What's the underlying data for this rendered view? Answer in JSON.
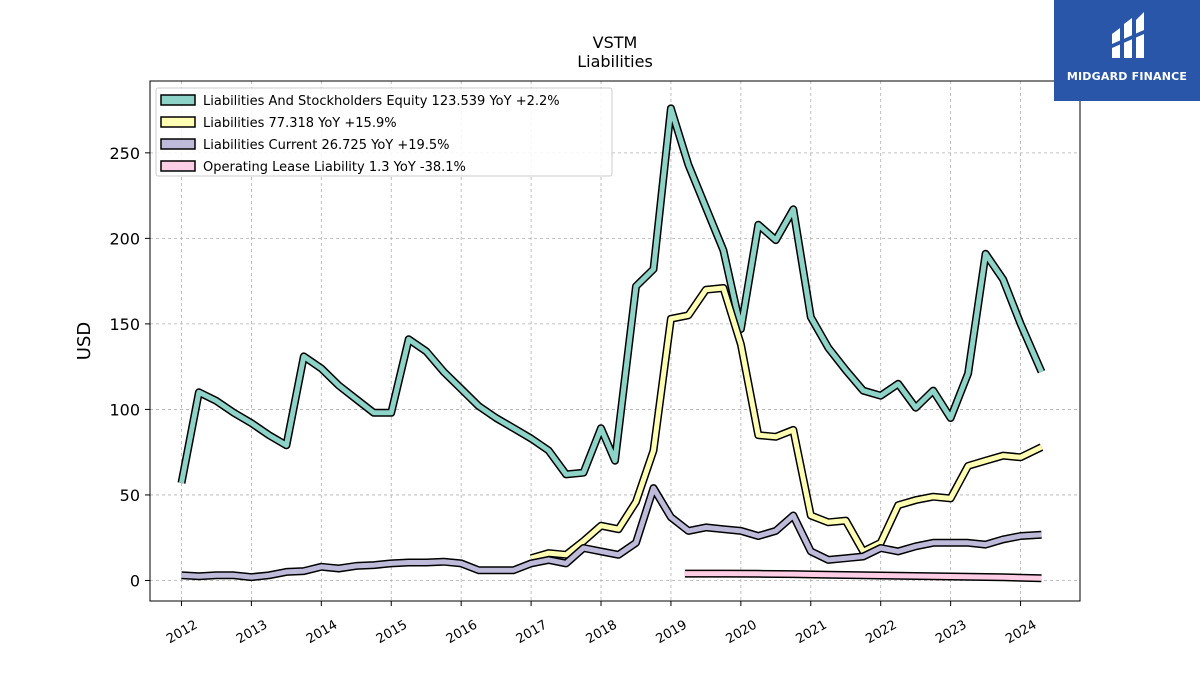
{
  "brand": {
    "name": "MIDGARD FINANCE",
    "bg": "#2a56a9"
  },
  "chart_data": {
    "type": "line",
    "title": "VSTM",
    "subtitle": "Liabilities",
    "ylabel": "USD",
    "xlabel": "",
    "xlim": [
      2011.55,
      2024.85
    ],
    "ylim": [
      -12,
      292
    ],
    "grid": true,
    "legend_position": "top-left",
    "yticks": [
      0,
      50,
      100,
      150,
      200,
      250
    ],
    "xticks": [
      "2012",
      "2013",
      "2014",
      "2015",
      "2016",
      "2017",
      "2018",
      "2019",
      "2020",
      "2021",
      "2022",
      "2023",
      "2024"
    ],
    "series": [
      {
        "name": "Liabilities And Stockholders Equity",
        "legend": "Liabilities And Stockholders Equity  123.539 YoY +2.2%",
        "color": "#8dd3c7",
        "points": [
          [
            2012.0,
            57
          ],
          [
            2012.25,
            110
          ],
          [
            2012.5,
            105
          ],
          [
            2012.75,
            98
          ],
          [
            2013.0,
            92
          ],
          [
            2013.25,
            85
          ],
          [
            2013.5,
            79
          ],
          [
            2013.75,
            131
          ],
          [
            2014.0,
            124
          ],
          [
            2014.25,
            114
          ],
          [
            2014.5,
            106
          ],
          [
            2014.75,
            98
          ],
          [
            2015.0,
            98
          ],
          [
            2015.25,
            141
          ],
          [
            2015.5,
            134
          ],
          [
            2015.75,
            122
          ],
          [
            2016.0,
            112
          ],
          [
            2016.25,
            102
          ],
          [
            2016.5,
            95
          ],
          [
            2016.75,
            89
          ],
          [
            2017.0,
            83
          ],
          [
            2017.25,
            76
          ],
          [
            2017.5,
            62
          ],
          [
            2017.75,
            63
          ],
          [
            2018.0,
            89
          ],
          [
            2018.2,
            70
          ],
          [
            2018.5,
            172
          ],
          [
            2018.75,
            182
          ],
          [
            2019.0,
            276
          ],
          [
            2019.25,
            243
          ],
          [
            2019.5,
            218
          ],
          [
            2019.75,
            193
          ],
          [
            2020.0,
            147
          ],
          [
            2020.25,
            208
          ],
          [
            2020.5,
            199
          ],
          [
            2020.75,
            217
          ],
          [
            2021.0,
            154
          ],
          [
            2021.25,
            136
          ],
          [
            2021.5,
            123
          ],
          [
            2021.75,
            111
          ],
          [
            2022.0,
            108
          ],
          [
            2022.25,
            115
          ],
          [
            2022.5,
            101
          ],
          [
            2022.75,
            111
          ],
          [
            2023.0,
            95
          ],
          [
            2023.25,
            121
          ],
          [
            2023.5,
            191
          ],
          [
            2023.75,
            176
          ],
          [
            2024.0,
            150
          ],
          [
            2024.3,
            122
          ]
        ]
      },
      {
        "name": "Liabilities",
        "legend": "Liabilities  77.318 YoY +15.9%",
        "color": "#ffffb3",
        "points": [
          [
            2017.0,
            13
          ],
          [
            2017.25,
            16
          ],
          [
            2017.5,
            15
          ],
          [
            2017.75,
            23
          ],
          [
            2018.0,
            32
          ],
          [
            2018.25,
            30
          ],
          [
            2018.5,
            46
          ],
          [
            2018.75,
            76
          ],
          [
            2019.0,
            153
          ],
          [
            2019.25,
            155
          ],
          [
            2019.5,
            170
          ],
          [
            2019.75,
            171
          ],
          [
            2020.0,
            138
          ],
          [
            2020.25,
            85
          ],
          [
            2020.5,
            84
          ],
          [
            2020.75,
            88
          ],
          [
            2021.0,
            38
          ],
          [
            2021.25,
            34
          ],
          [
            2021.5,
            35
          ],
          [
            2021.75,
            17
          ],
          [
            2022.0,
            22
          ],
          [
            2022.25,
            44
          ],
          [
            2022.5,
            47
          ],
          [
            2022.75,
            49
          ],
          [
            2023.0,
            48
          ],
          [
            2023.25,
            67
          ],
          [
            2023.5,
            70
          ],
          [
            2023.75,
            73
          ],
          [
            2024.0,
            72
          ],
          [
            2024.3,
            78
          ]
        ]
      },
      {
        "name": "Liabilities Current",
        "legend": "Liabilities Current  26.725 YoY +19.5%",
        "color": "#bebada",
        "points": [
          [
            2012.0,
            3
          ],
          [
            2012.25,
            2.5
          ],
          [
            2012.5,
            3
          ],
          [
            2012.75,
            3
          ],
          [
            2013.0,
            2
          ],
          [
            2013.25,
            3
          ],
          [
            2013.5,
            5
          ],
          [
            2013.75,
            5.5
          ],
          [
            2014.0,
            8
          ],
          [
            2014.25,
            7
          ],
          [
            2014.5,
            8.5
          ],
          [
            2014.75,
            9
          ],
          [
            2015.0,
            10
          ],
          [
            2015.25,
            10.5
          ],
          [
            2015.5,
            10.5
          ],
          [
            2015.75,
            11
          ],
          [
            2016.0,
            10
          ],
          [
            2016.25,
            6
          ],
          [
            2016.5,
            6
          ],
          [
            2016.75,
            6
          ],
          [
            2017.0,
            10
          ],
          [
            2017.25,
            12
          ],
          [
            2017.5,
            10
          ],
          [
            2017.75,
            19
          ],
          [
            2018.0,
            17
          ],
          [
            2018.25,
            15
          ],
          [
            2018.5,
            22
          ],
          [
            2018.75,
            54
          ],
          [
            2019.0,
            37
          ],
          [
            2019.25,
            29
          ],
          [
            2019.5,
            31
          ],
          [
            2019.75,
            30
          ],
          [
            2020.0,
            29
          ],
          [
            2020.25,
            26
          ],
          [
            2020.5,
            29
          ],
          [
            2020.75,
            38
          ],
          [
            2021.0,
            17
          ],
          [
            2021.25,
            12
          ],
          [
            2021.5,
            13
          ],
          [
            2021.75,
            14
          ],
          [
            2022.0,
            19
          ],
          [
            2022.25,
            17
          ],
          [
            2022.5,
            20
          ],
          [
            2022.75,
            22
          ],
          [
            2023.0,
            22
          ],
          [
            2023.25,
            22
          ],
          [
            2023.5,
            21
          ],
          [
            2023.75,
            24
          ],
          [
            2024.0,
            26
          ],
          [
            2024.3,
            26.7
          ]
        ]
      },
      {
        "name": "Operating Lease Liability",
        "legend": "Operating Lease Liability  1.3 YoY -38.1%",
        "color": "#fccde5",
        "points": [
          [
            2019.2,
            4
          ],
          [
            2019.75,
            4
          ],
          [
            2020.25,
            3.9
          ],
          [
            2020.75,
            3.7
          ],
          [
            2021.25,
            3.4
          ],
          [
            2021.75,
            3.1
          ],
          [
            2022.25,
            2.8
          ],
          [
            2022.75,
            2.5
          ],
          [
            2023.25,
            2.2
          ],
          [
            2023.75,
            1.9
          ],
          [
            2024.3,
            1.3
          ]
        ]
      }
    ]
  }
}
